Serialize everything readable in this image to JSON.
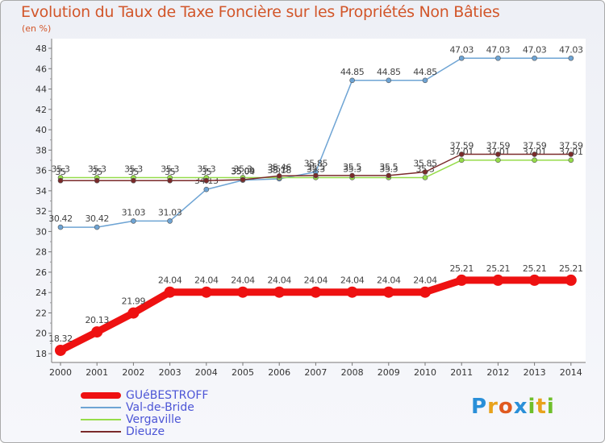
{
  "title": "Evolution du Taux de Taxe Foncière sur les Propriétés Non Bâties",
  "unit_label": "(en %)",
  "logo_text": "Proxiti",
  "chart_data": {
    "type": "line",
    "title": "Evolution du Taux de Taxe Foncière sur les Propriétés Non Bâties",
    "ylabel": "(en %)",
    "xlabel": "",
    "x": [
      "2000",
      "2001",
      "2002",
      "2003",
      "2004",
      "2005",
      "2006",
      "2007",
      "2008",
      "2009",
      "2010",
      "2011",
      "2012",
      "2013",
      "2014"
    ],
    "y_ticks": [
      "18",
      "20",
      "22",
      "24",
      "26",
      "28",
      "30",
      "32",
      "34",
      "36",
      "38",
      "40",
      "42",
      "44",
      "46",
      "48"
    ],
    "ylim": [
      18,
      48
    ],
    "grid": false,
    "series": [
      {
        "name": "Val-de-Bride",
        "color": "#6ea4d4",
        "values": [
          30.42,
          30.42,
          31.03,
          31.03,
          34.13,
          35.04,
          35.18,
          35.85,
          44.85,
          44.85,
          44.85,
          47.03,
          47.03,
          47.03,
          47.03
        ],
        "labels": [
          "30.42",
          "30.42",
          "31.03",
          "31.03",
          "34.13",
          "35.04",
          "35.18",
          "35.85",
          "44.85",
          "44.85",
          "44.85",
          "47.03",
          "47.03",
          "47.03",
          "47.03"
        ]
      },
      {
        "name": "Vergaville",
        "color": "#96dc4a",
        "values": [
          35.3,
          35.3,
          35.3,
          35.3,
          35.3,
          35.3,
          35.3,
          35.3,
          35.3,
          35.3,
          35.3,
          37.01,
          37.01,
          37.01,
          37.01
        ],
        "labels": [
          "35.3",
          "35.3",
          "35.3",
          "35.3",
          "35.3",
          "35.3",
          "35.3",
          "35.3",
          "35.3",
          "35.3",
          "35.3",
          "37.01",
          "37.01",
          "37.01",
          "37.01"
        ]
      },
      {
        "name": "Dieuze",
        "color": "#7a2a2a",
        "values": [
          35,
          35,
          35,
          35,
          35,
          35.09,
          35.46,
          35.5,
          35.5,
          35.5,
          35.85,
          37.59,
          37.59,
          37.59,
          37.59
        ],
        "labels": [
          "35",
          "35",
          "35",
          "35",
          "35",
          "35.09",
          "35.46",
          "35.5",
          "35.5",
          "35.5",
          "35.85",
          "37.59",
          "37.59",
          "37.59",
          "37.59"
        ]
      },
      {
        "name": "GUéBESTROFF",
        "color": "#ee1111",
        "values": [
          18.32,
          20.13,
          21.99,
          24.04,
          24.04,
          24.04,
          24.04,
          24.04,
          24.04,
          24.04,
          24.04,
          25.21,
          25.21,
          25.21,
          25.21
        ],
        "labels": [
          "18.32",
          "20.13",
          "21.99",
          "24.04",
          "24.04",
          "24.04",
          "24.04",
          "24.04",
          "24.04",
          "24.04",
          "24.04",
          "25.21",
          "25.21",
          "25.21",
          "25.21"
        ]
      }
    ]
  },
  "legend": [
    {
      "label": "GUéBESTROFF",
      "color": "#ee1111"
    },
    {
      "label": "Val-de-Bride",
      "color": "#6ea4d4"
    },
    {
      "label": "Vergaville",
      "color": "#96dc4a"
    },
    {
      "label": "Dieuze",
      "color": "#7a2a2a"
    }
  ]
}
